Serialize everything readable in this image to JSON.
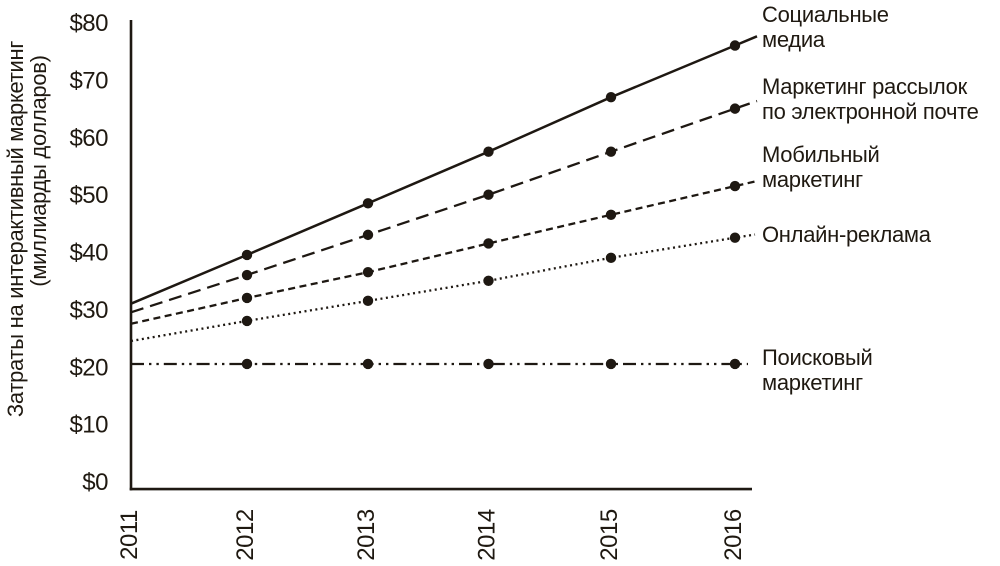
{
  "chart_data": {
    "type": "line",
    "title": "",
    "ylabel_lines": [
      "Затраты на интерактивный маркетинг",
      "(миллиарды долларов)"
    ],
    "xlabel": "",
    "x_categories": [
      "2011",
      "2012",
      "2013",
      "2014",
      "2015",
      "2016"
    ],
    "y_ticks": [
      {
        "label": "$0",
        "value": 0
      },
      {
        "label": "$10",
        "value": 10
      },
      {
        "label": "$20",
        "value": 20
      },
      {
        "label": "$30",
        "value": 30
      },
      {
        "label": "$40",
        "value": 40
      },
      {
        "label": "$50",
        "value": 50
      },
      {
        "label": "$60",
        "value": 60
      },
      {
        "label": "$70",
        "value": 70
      },
      {
        "label": "$80",
        "value": 80
      }
    ],
    "ylim": [
      0,
      80
    ],
    "grid": false,
    "legend_position": "right-at-line-ends",
    "marker": "filled-circle",
    "markers_on_years": [
      "2012",
      "2013",
      "2014",
      "2015",
      "2016"
    ],
    "line_color": "#1e1812",
    "background": "#ffffff",
    "series": [
      {
        "key": "social-media",
        "name": "Социальные медиа",
        "label_lines": [
          "Социальные",
          "медиа"
        ],
        "line_style": "solid",
        "values": [
          31,
          39.5,
          48.5,
          57.5,
          67,
          76
        ]
      },
      {
        "key": "email-marketing",
        "name": "Маркетинг рассылок по электронной почте",
        "label_lines": [
          "Маркетинг рассылок",
          "по электронной почте"
        ],
        "line_style": "long-dash",
        "values": [
          29.5,
          36,
          43,
          50,
          57.5,
          65
        ]
      },
      {
        "key": "mobile-marketing",
        "name": "Мобильный маркетинг",
        "label_lines": [
          "Мобильный",
          "маркетинг"
        ],
        "line_style": "dash",
        "values": [
          27.5,
          32,
          36.5,
          41.5,
          46.5,
          51.5
        ]
      },
      {
        "key": "online-advertising",
        "name": "Онлайн-реклама",
        "label_lines": [
          "Онлайн-реклама"
        ],
        "line_style": "dot",
        "values": [
          24.5,
          28,
          31.5,
          35,
          39,
          42.5
        ]
      },
      {
        "key": "search-marketing",
        "name": "Поисковый маркетинг",
        "label_lines": [
          "Поисковый",
          "маркетинг"
        ],
        "line_style": "dash-dot-dot",
        "values": [
          20.5,
          20.5,
          20.5,
          20.5,
          20.5,
          20.5
        ]
      }
    ]
  }
}
